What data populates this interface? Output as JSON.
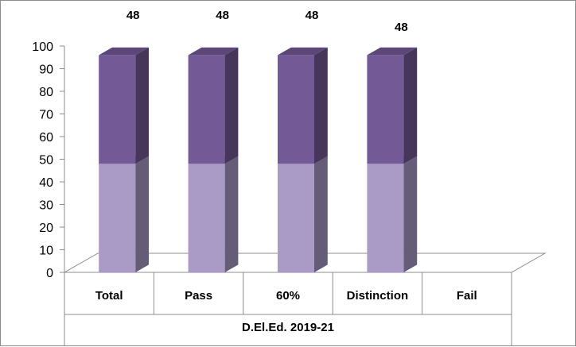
{
  "chart_data": {
    "type": "bar",
    "subtype": "stacked-3d-column",
    "group_label": "D.El.Ed. 2019-21",
    "categories": [
      "Total",
      "Pass",
      "60%",
      "Distinction",
      "Fail"
    ],
    "series": [
      {
        "values": [
          48,
          48,
          48,
          48,
          0
        ],
        "color": "#a99bc6"
      },
      {
        "values": [
          48,
          48,
          48,
          48,
          0
        ],
        "color": "#735a96"
      }
    ],
    "data_labels": [
      "48",
      "48",
      "48",
      "48",
      ""
    ],
    "ylim": [
      0,
      100
    ],
    "yticks": [
      0,
      10,
      20,
      30,
      40,
      50,
      60,
      70,
      80,
      90,
      100
    ],
    "grid": false,
    "legend": "none"
  }
}
